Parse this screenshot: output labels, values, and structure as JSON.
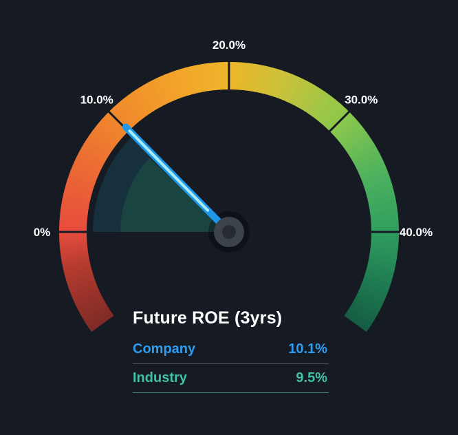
{
  "chart_data": {
    "type": "gauge",
    "title": "Future ROE (3yrs)",
    "unit": "%",
    "min": 0,
    "max": 40,
    "tick_values": [
      0,
      10,
      20,
      30,
      40
    ],
    "tick_labels": [
      "0%",
      "10.0%",
      "20.0%",
      "30.0%",
      "40.0%"
    ],
    "series": [
      {
        "name": "Company",
        "value": 10.1,
        "display": "10.1%",
        "color": "#2d9df0",
        "wedge_color": "#16303e"
      },
      {
        "name": "Industry",
        "value": 9.5,
        "display": "9.5%",
        "color": "#41c1a3",
        "wedge_color": "#1a443f"
      }
    ],
    "needle": {
      "color": "#1f97e9",
      "highlight": "#a6ebf7",
      "hub_color": "#3c434b",
      "hub_center": "#262b31"
    },
    "arc_colors": [
      {
        "pos": 0.0,
        "color": "#7e2b26"
      },
      {
        "pos": 0.09,
        "color": "#b23a2e"
      },
      {
        "pos": 0.143,
        "color": "#e74c3c"
      },
      {
        "pos": 0.25,
        "color": "#ec6e33"
      },
      {
        "pos": 0.321,
        "color": "#f0882c"
      },
      {
        "pos": 0.43,
        "color": "#f2a52a"
      },
      {
        "pos": 0.5,
        "color": "#edb62b"
      },
      {
        "pos": 0.58,
        "color": "#c9c23a"
      },
      {
        "pos": 0.679,
        "color": "#8cc84b"
      },
      {
        "pos": 0.77,
        "color": "#4fb25e"
      },
      {
        "pos": 0.857,
        "color": "#2f9e5e"
      },
      {
        "pos": 0.93,
        "color": "#1f7c52"
      },
      {
        "pos": 1.0,
        "color": "#145c43"
      }
    ],
    "background": "#151a23"
  }
}
